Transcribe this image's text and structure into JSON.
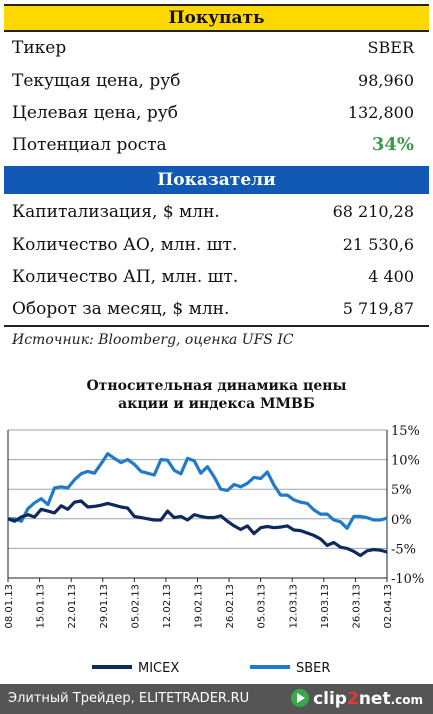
{
  "buy": {
    "title": "Покупать",
    "rows": [
      {
        "label": "Тикер",
        "value": "SBER"
      },
      {
        "label": "Текущая цена, руб",
        "value": "98,960"
      },
      {
        "label": "Целевая цена, руб",
        "value": "132,800"
      },
      {
        "label": "Потенциал роста",
        "value": "34%"
      }
    ]
  },
  "indicators": {
    "title": "Показатели",
    "rows": [
      {
        "label": "Капитализация, $ млн.",
        "value": "68 210,28"
      },
      {
        "label": "Количество АО, млн. шт.",
        "value": "21 530,6"
      },
      {
        "label": "Количество АП, млн. шт.",
        "value": "4 400"
      },
      {
        "label": "Оборот за месяц, $ млн.",
        "value": "5 719,87"
      }
    ]
  },
  "source": "Источник: Bloomberg, оценка UFS IC",
  "chart_data": {
    "type": "line",
    "title_line1": "Относительная динамика цены",
    "title_line2": "акции и индекса ММВБ",
    "x_ticks": [
      "08.01.13",
      "15.01.13",
      "22.01.13",
      "29.01.13",
      "05.02.13",
      "12.02.13",
      "19.02.13",
      "26.02.13",
      "05.03.13",
      "12.03.13",
      "19.03.13",
      "26.03.13",
      "02.04.13"
    ],
    "y_ticks": [
      "15%",
      "10%",
      "5%",
      "0%",
      "-5%",
      "-10%"
    ],
    "y_tick_values": [
      15,
      10,
      5,
      0,
      -5,
      -10
    ],
    "ylim": [
      -10,
      15
    ],
    "grid": true,
    "legend_position": "bottom",
    "series": [
      {
        "name": "MICEX",
        "color": "#0e2a5c",
        "values": [
          0,
          -0.4,
          0.3,
          0.7,
          0.3,
          1.6,
          1.3,
          1.0,
          2.2,
          1.6,
          2.8,
          3.0,
          2.0,
          2.1,
          2.3,
          2.6,
          2.3,
          2.0,
          1.8,
          0.4,
          0.2,
          0.0,
          -0.2,
          -0.2,
          1.3,
          0.2,
          0.4,
          -0.2,
          0.7,
          0.4,
          0.2,
          0.2,
          0.5,
          -0.4,
          -1.2,
          -1.8,
          -1.2,
          -2.5,
          -1.5,
          -1.3,
          -1.5,
          -1.4,
          -1.2,
          -1.9,
          -2.0,
          -2.4,
          -2.8,
          -3.4,
          -4.5,
          -4.0,
          -4.8,
          -5.0,
          -5.5,
          -6.2,
          -5.4,
          -5.2,
          -5.3,
          -5.6
        ]
      },
      {
        "name": "SBER",
        "color": "#1f7ac9",
        "values": [
          0,
          0,
          -0.4,
          1.7,
          2.7,
          3.4,
          2.4,
          5.2,
          5.4,
          5.2,
          6.6,
          7.6,
          8.0,
          7.7,
          9.3,
          11.0,
          10.2,
          9.5,
          10.0,
          9.2,
          8.0,
          7.7,
          7.4,
          10.0,
          9.9,
          8.2,
          7.6,
          10.2,
          9.8,
          7.7,
          8.8,
          7.1,
          5.0,
          4.8,
          5.8,
          5.4,
          6.0,
          7.0,
          6.8,
          7.9,
          5.7,
          4.0,
          4.0,
          3.2,
          2.8,
          2.6,
          1.5,
          0.8,
          0.8,
          -0.2,
          -0.5,
          -1.6,
          0.4,
          0.4,
          0.2,
          -0.2,
          -0.2,
          0.1
        ]
      }
    ]
  },
  "footer": {
    "text": "Элитный Трейдер, ELITETRADER.RU",
    "logo_main": "clip",
    "logo_accent": "2",
    "logo_tail": "net",
    "logo_suffix": ".com"
  }
}
